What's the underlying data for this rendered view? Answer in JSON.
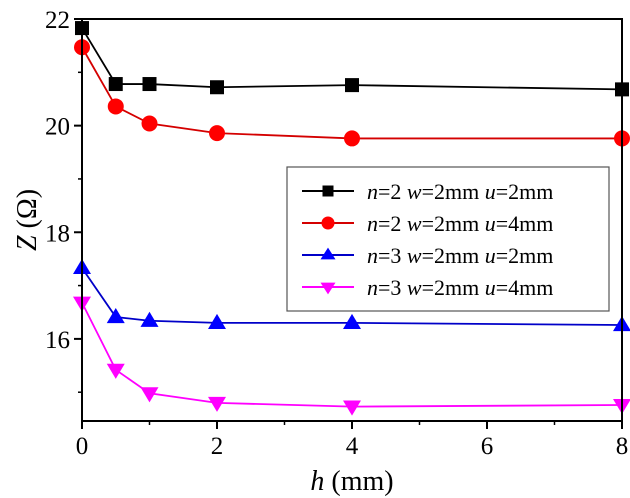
{
  "chart_data": {
    "type": "line",
    "title": "",
    "xlabel": {
      "var": "h",
      "unit": " (mm)"
    },
    "ylabel": {
      "var": "Z",
      "unit": " (Ω)"
    },
    "xlim": [
      0,
      8
    ],
    "ylim": [
      14.46,
      22.0
    ],
    "xticks": [
      0,
      2,
      4,
      6,
      8
    ],
    "xtick_labels": [
      "0",
      "2",
      "4",
      "6",
      "8"
    ],
    "xminor": [
      1,
      3,
      5,
      7
    ],
    "yticks": [
      16,
      18,
      20,
      22
    ],
    "ytick_labels": [
      "16",
      "18",
      "20",
      "22"
    ],
    "yminor": [
      15,
      17,
      19,
      21
    ],
    "grid": false,
    "legend_position": "center-right",
    "x": [
      0,
      0.5,
      1,
      2,
      4,
      8
    ],
    "series": [
      {
        "name": "n=2 w=2mm u=2mm",
        "legend": [
          [
            "n",
            true
          ],
          [
            "=2 ",
            false
          ],
          [
            "w",
            true
          ],
          [
            "=2mm ",
            false
          ],
          [
            "u",
            true
          ],
          [
            "=2mm",
            false
          ]
        ],
        "color": "#000000",
        "marker": "square",
        "values": [
          21.83,
          20.78,
          20.78,
          20.72,
          20.76,
          20.68
        ]
      },
      {
        "name": "n=2 w=2mm u=4mm",
        "legend": [
          [
            "n",
            true
          ],
          [
            "=2 ",
            false
          ],
          [
            "w",
            true
          ],
          [
            "=2mm ",
            false
          ],
          [
            "u",
            true
          ],
          [
            "=4mm",
            false
          ]
        ],
        "color": "#ff0000",
        "linecolor": "#d40000",
        "marker": "circle",
        "values": [
          21.47,
          20.36,
          20.04,
          19.86,
          19.76,
          19.76
        ]
      },
      {
        "name": "n=3 w=2mm u=2mm",
        "legend": [
          [
            "n",
            true
          ],
          [
            "=3 ",
            false
          ],
          [
            "w",
            true
          ],
          [
            "=2mm ",
            false
          ],
          [
            "u",
            true
          ],
          [
            "=2mm",
            false
          ]
        ],
        "color": "#0000ff",
        "linecolor": "#0000c8",
        "marker": "triangle-up",
        "values": [
          17.33,
          16.41,
          16.34,
          16.3,
          16.3,
          16.26
        ]
      },
      {
        "name": "n=3 w=2mm u=4mm",
        "legend": [
          [
            "n",
            true
          ],
          [
            "=3 ",
            false
          ],
          [
            "w",
            true
          ],
          [
            "=2mm ",
            false
          ],
          [
            "u",
            true
          ],
          [
            "=4mm",
            false
          ]
        ],
        "color": "#ff00ff",
        "linecolor": "#ff00ff",
        "marker": "triangle-down",
        "values": [
          16.68,
          15.42,
          14.98,
          14.8,
          14.73,
          14.76
        ]
      }
    ]
  }
}
